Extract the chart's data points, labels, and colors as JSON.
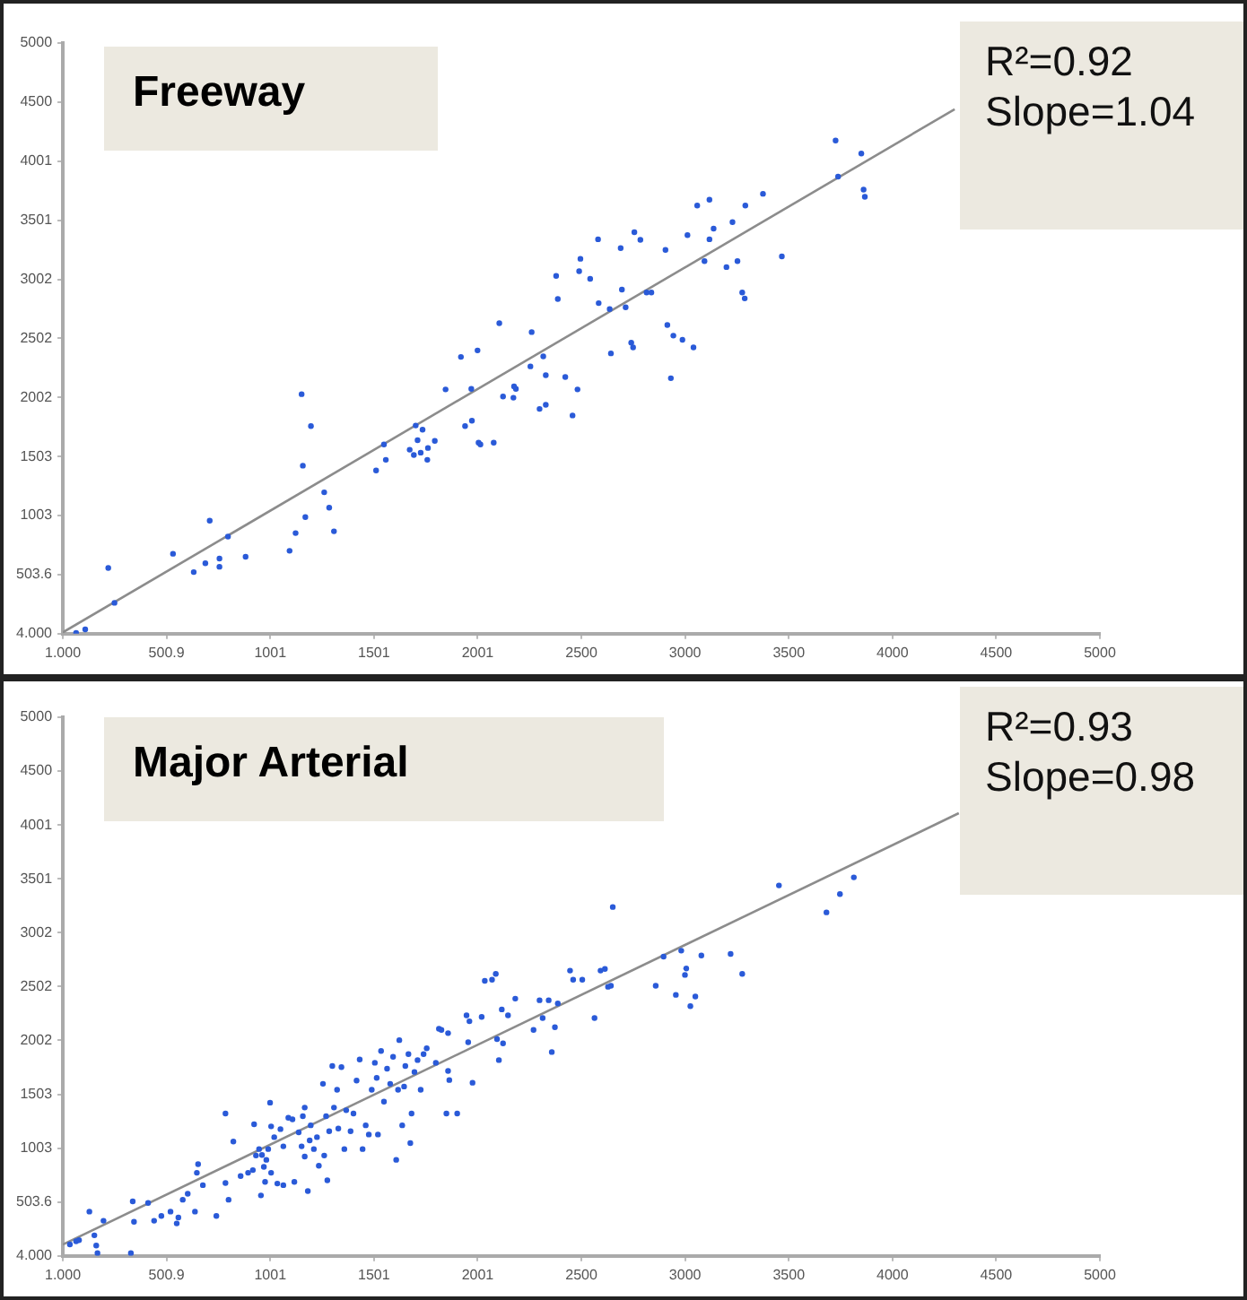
{
  "chart_data": [
    {
      "type": "scatter",
      "title": "Freeway",
      "annotations": [
        "R²=0.92",
        "Slope=1.04"
      ],
      "marker": "circle",
      "grid": false,
      "xlim": [
        1,
        5000
      ],
      "xticks": [
        {
          "value": 1,
          "label": "1.000"
        },
        {
          "value": 500.9,
          "label": "500.9"
        },
        {
          "value": 1000.8,
          "label": "1001"
        },
        {
          "value": 1500.7,
          "label": "1501"
        },
        {
          "value": 2000.6,
          "label": "2001"
        },
        {
          "value": 2500.5,
          "label": "2500"
        },
        {
          "value": 3000.4,
          "label": "3000"
        },
        {
          "value": 3500.3,
          "label": "3500"
        },
        {
          "value": 4000.2,
          "label": "4000"
        },
        {
          "value": 4500.1,
          "label": "4500"
        },
        {
          "value": 5000,
          "label": "5000"
        }
      ],
      "ylim": [
        4,
        5000
      ],
      "yticks": [
        {
          "value": 4,
          "label": "4.000"
        },
        {
          "value": 503.6,
          "label": "503.6"
        },
        {
          "value": 1003.2,
          "label": "1003"
        },
        {
          "value": 1502.8,
          "label": "1503"
        },
        {
          "value": 2002.4,
          "label": "2002"
        },
        {
          "value": 2502,
          "label": "2502"
        },
        {
          "value": 3001.6,
          "label": "3002"
        },
        {
          "value": 3501.2,
          "label": "3501"
        },
        {
          "value": 4000.8,
          "label": "4001"
        },
        {
          "value": 4500.4,
          "label": "4500"
        },
        {
          "value": 5000,
          "label": "5000"
        }
      ],
      "series": [
        {
          "type": "scatter",
          "color": "#2a5ad8",
          "x": [
            65,
            109,
            220,
            250,
            532,
            632,
            688,
            709,
            756,
            756,
            797,
            882,
            1094,
            1123,
            1152,
            1158,
            1170,
            1197,
            1261,
            1285,
            1308,
            1511,
            1549,
            1558,
            1673,
            1693,
            1702,
            1711,
            1726,
            1735,
            1758,
            1761,
            1794,
            1846,
            1920,
            1940,
            1970,
            1973,
            2000,
            2005,
            2014,
            2078,
            2105,
            2123,
            2173,
            2176,
            2185,
            2255,
            2261,
            2299,
            2317,
            2329,
            2329,
            2379,
            2387,
            2423,
            2458,
            2482,
            2490,
            2496,
            2543,
            2581,
            2584,
            2637,
            2643,
            2690,
            2696,
            2714,
            2741,
            2750,
            2756,
            2785,
            2815,
            2838,
            2906,
            2915,
            2932,
            2944,
            2988,
            3012,
            3041,
            3059,
            3094,
            3118,
            3118,
            3138,
            3200,
            3229,
            3253,
            3276,
            3288,
            3291,
            3376,
            3467,
            3726,
            3738,
            3850,
            3861,
            3867
          ],
          "values": [
            10,
            40,
            560,
            265,
            680,
            525,
            600,
            960,
            640,
            570,
            825,
            655,
            705,
            855,
            2030,
            1425,
            990,
            1760,
            1200,
            1070,
            870,
            1385,
            1605,
            1475,
            1560,
            1515,
            1765,
            1640,
            1535,
            1730,
            1475,
            1575,
            1635,
            2070,
            2345,
            1760,
            2075,
            1805,
            2400,
            1620,
            1605,
            1620,
            2630,
            2010,
            2000,
            2095,
            2075,
            2265,
            2555,
            1905,
            2350,
            2190,
            1940,
            3030,
            2835,
            2175,
            1850,
            2070,
            3070,
            3175,
            3005,
            3340,
            2800,
            2750,
            2375,
            3265,
            2915,
            2765,
            2465,
            2425,
            3400,
            3335,
            2890,
            2890,
            3250,
            2615,
            2165,
            2525,
            2490,
            3375,
            2425,
            3625,
            3155,
            3675,
            3340,
            3430,
            3105,
            3485,
            3155,
            2890,
            2840,
            3625,
            3725,
            3195,
            4175,
            3870,
            4065,
            3760,
            3700
          ]
        },
        {
          "type": "line",
          "color": "#8c8c8c",
          "marker": "none",
          "x": [
            1,
            4300
          ],
          "values": [
            15,
            4440
          ]
        }
      ]
    },
    {
      "type": "scatter",
      "title": "Major Arterial",
      "annotations": [
        "R²=0.93",
        "Slope=0.98"
      ],
      "marker": "circle",
      "grid": false,
      "xlim": [
        1,
        5000
      ],
      "xticks": [
        {
          "value": 1,
          "label": "1.000"
        },
        {
          "value": 500.9,
          "label": "500.9"
        },
        {
          "value": 1000.8,
          "label": "1001"
        },
        {
          "value": 1500.7,
          "label": "1501"
        },
        {
          "value": 2000.6,
          "label": "2001"
        },
        {
          "value": 2500.5,
          "label": "2500"
        },
        {
          "value": 3000.4,
          "label": "3000"
        },
        {
          "value": 3500.3,
          "label": "3500"
        },
        {
          "value": 4000.2,
          "label": "4000"
        },
        {
          "value": 4500.1,
          "label": "4500"
        },
        {
          "value": 5000,
          "label": "5000"
        }
      ],
      "ylim": [
        4,
        5000
      ],
      "yticks": [
        {
          "value": 4,
          "label": "4.000"
        },
        {
          "value": 503.6,
          "label": "503.6"
        },
        {
          "value": 1003.2,
          "label": "1003"
        },
        {
          "value": 1502.8,
          "label": "1503"
        },
        {
          "value": 2002.4,
          "label": "2002"
        },
        {
          "value": 2502,
          "label": "2502"
        },
        {
          "value": 3001.6,
          "label": "3002"
        },
        {
          "value": 3501.2,
          "label": "3501"
        },
        {
          "value": 4000.8,
          "label": "4001"
        },
        {
          "value": 4500.4,
          "label": "4500"
        },
        {
          "value": 5000,
          "label": "5000"
        }
      ],
      "series": [
        {
          "type": "scatter",
          "color": "#2a5ad8",
          "x": [
            35,
            65,
            79,
            129,
            153,
            162,
            168,
            197,
            329,
            338,
            344,
            412,
            441,
            476,
            520,
            550,
            558,
            579,
            603,
            638,
            647,
            653,
            676,
            741,
            785,
            800,
            785,
            823,
            858,
            894,
            917,
            923,
            932,
            947,
            961,
            956,
            970,
            976,
            982,
            991,
            1000,
            1005,
            1005,
            1020,
            1035,
            1050,
            1064,
            1064,
            1088,
            1108,
            1117,
            1138,
            1152,
            1158,
            1167,
            1167,
            1182,
            1191,
            1196,
            1211,
            1226,
            1235,
            1255,
            1261,
            1270,
            1276,
            1285,
            1300,
            1308,
            1323,
            1329,
            1344,
            1358,
            1367,
            1388,
            1402,
            1417,
            1432,
            1446,
            1461,
            1476,
            1490,
            1505,
            1514,
            1520,
            1535,
            1549,
            1564,
            1579,
            1593,
            1608,
            1617,
            1623,
            1637,
            1646,
            1652,
            1667,
            1676,
            1682,
            1696,
            1711,
            1726,
            1740,
            1755,
            1799,
            1814,
            1826,
            1858,
            1858,
            1850,
            1864,
            1902,
            1947,
            1961,
            1955,
            1976,
            2020,
            2035,
            2070,
            2088,
            2094,
            2103,
            2117,
            2123,
            2147,
            2182,
            2270,
            2299,
            2314,
            2343,
            2358,
            2373,
            2387,
            2446,
            2461,
            2505,
            2564,
            2593,
            2614,
            2629,
            2643,
            2652,
            2859,
            2897,
            2956,
            2982,
            3006,
            3000,
            3026,
            3050,
            3079,
            3220,
            3276,
            3453,
            3682,
            3747,
            3814
          ],
          "values": [
            110,
            140,
            150,
            415,
            195,
            100,
            30,
            330,
            30,
            510,
            320,
            495,
            330,
            375,
            415,
            305,
            360,
            525,
            580,
            415,
            775,
            855,
            660,
            375,
            680,
            525,
            1325,
            1065,
            745,
            775,
            800,
            1225,
            935,
            995,
            940,
            565,
            830,
            690,
            895,
            995,
            1425,
            1205,
            775,
            1105,
            675,
            1180,
            1020,
            660,
            1285,
            1270,
            690,
            1150,
            1020,
            1300,
            1380,
            925,
            605,
            1075,
            1215,
            995,
            1105,
            840,
            1600,
            935,
            1300,
            705,
            1160,
            1765,
            1380,
            1545,
            1185,
            1755,
            995,
            1355,
            1160,
            1325,
            1630,
            1825,
            995,
            1215,
            1130,
            1545,
            1795,
            1655,
            1130,
            1905,
            1435,
            1740,
            1600,
            1850,
            895,
            1545,
            2005,
            1215,
            1575,
            1765,
            1875,
            1050,
            1325,
            1710,
            1820,
            1545,
            1875,
            1930,
            1795,
            2110,
            2100,
            2070,
            1720,
            1325,
            1635,
            1325,
            2235,
            2180,
            1985,
            1610,
            2220,
            2555,
            2565,
            2620,
            2015,
            1820,
            2290,
            1975,
            2235,
            2390,
            2100,
            2375,
            2210,
            2375,
            1895,
            2125,
            2345,
            2650,
            2565,
            2565,
            2210,
            2650,
            2665,
            2500,
            2510,
            3240,
            2510,
            2780,
            2425,
            2835,
            2670,
            2610,
            2320,
            2410,
            2790,
            2805,
            2620,
            3440,
            3190,
            3360,
            3515
          ]
        },
        {
          "type": "line",
          "color": "#8c8c8c",
          "marker": "none",
          "x": [
            1,
            4320
          ],
          "values": [
            110,
            4110
          ]
        }
      ]
    }
  ]
}
